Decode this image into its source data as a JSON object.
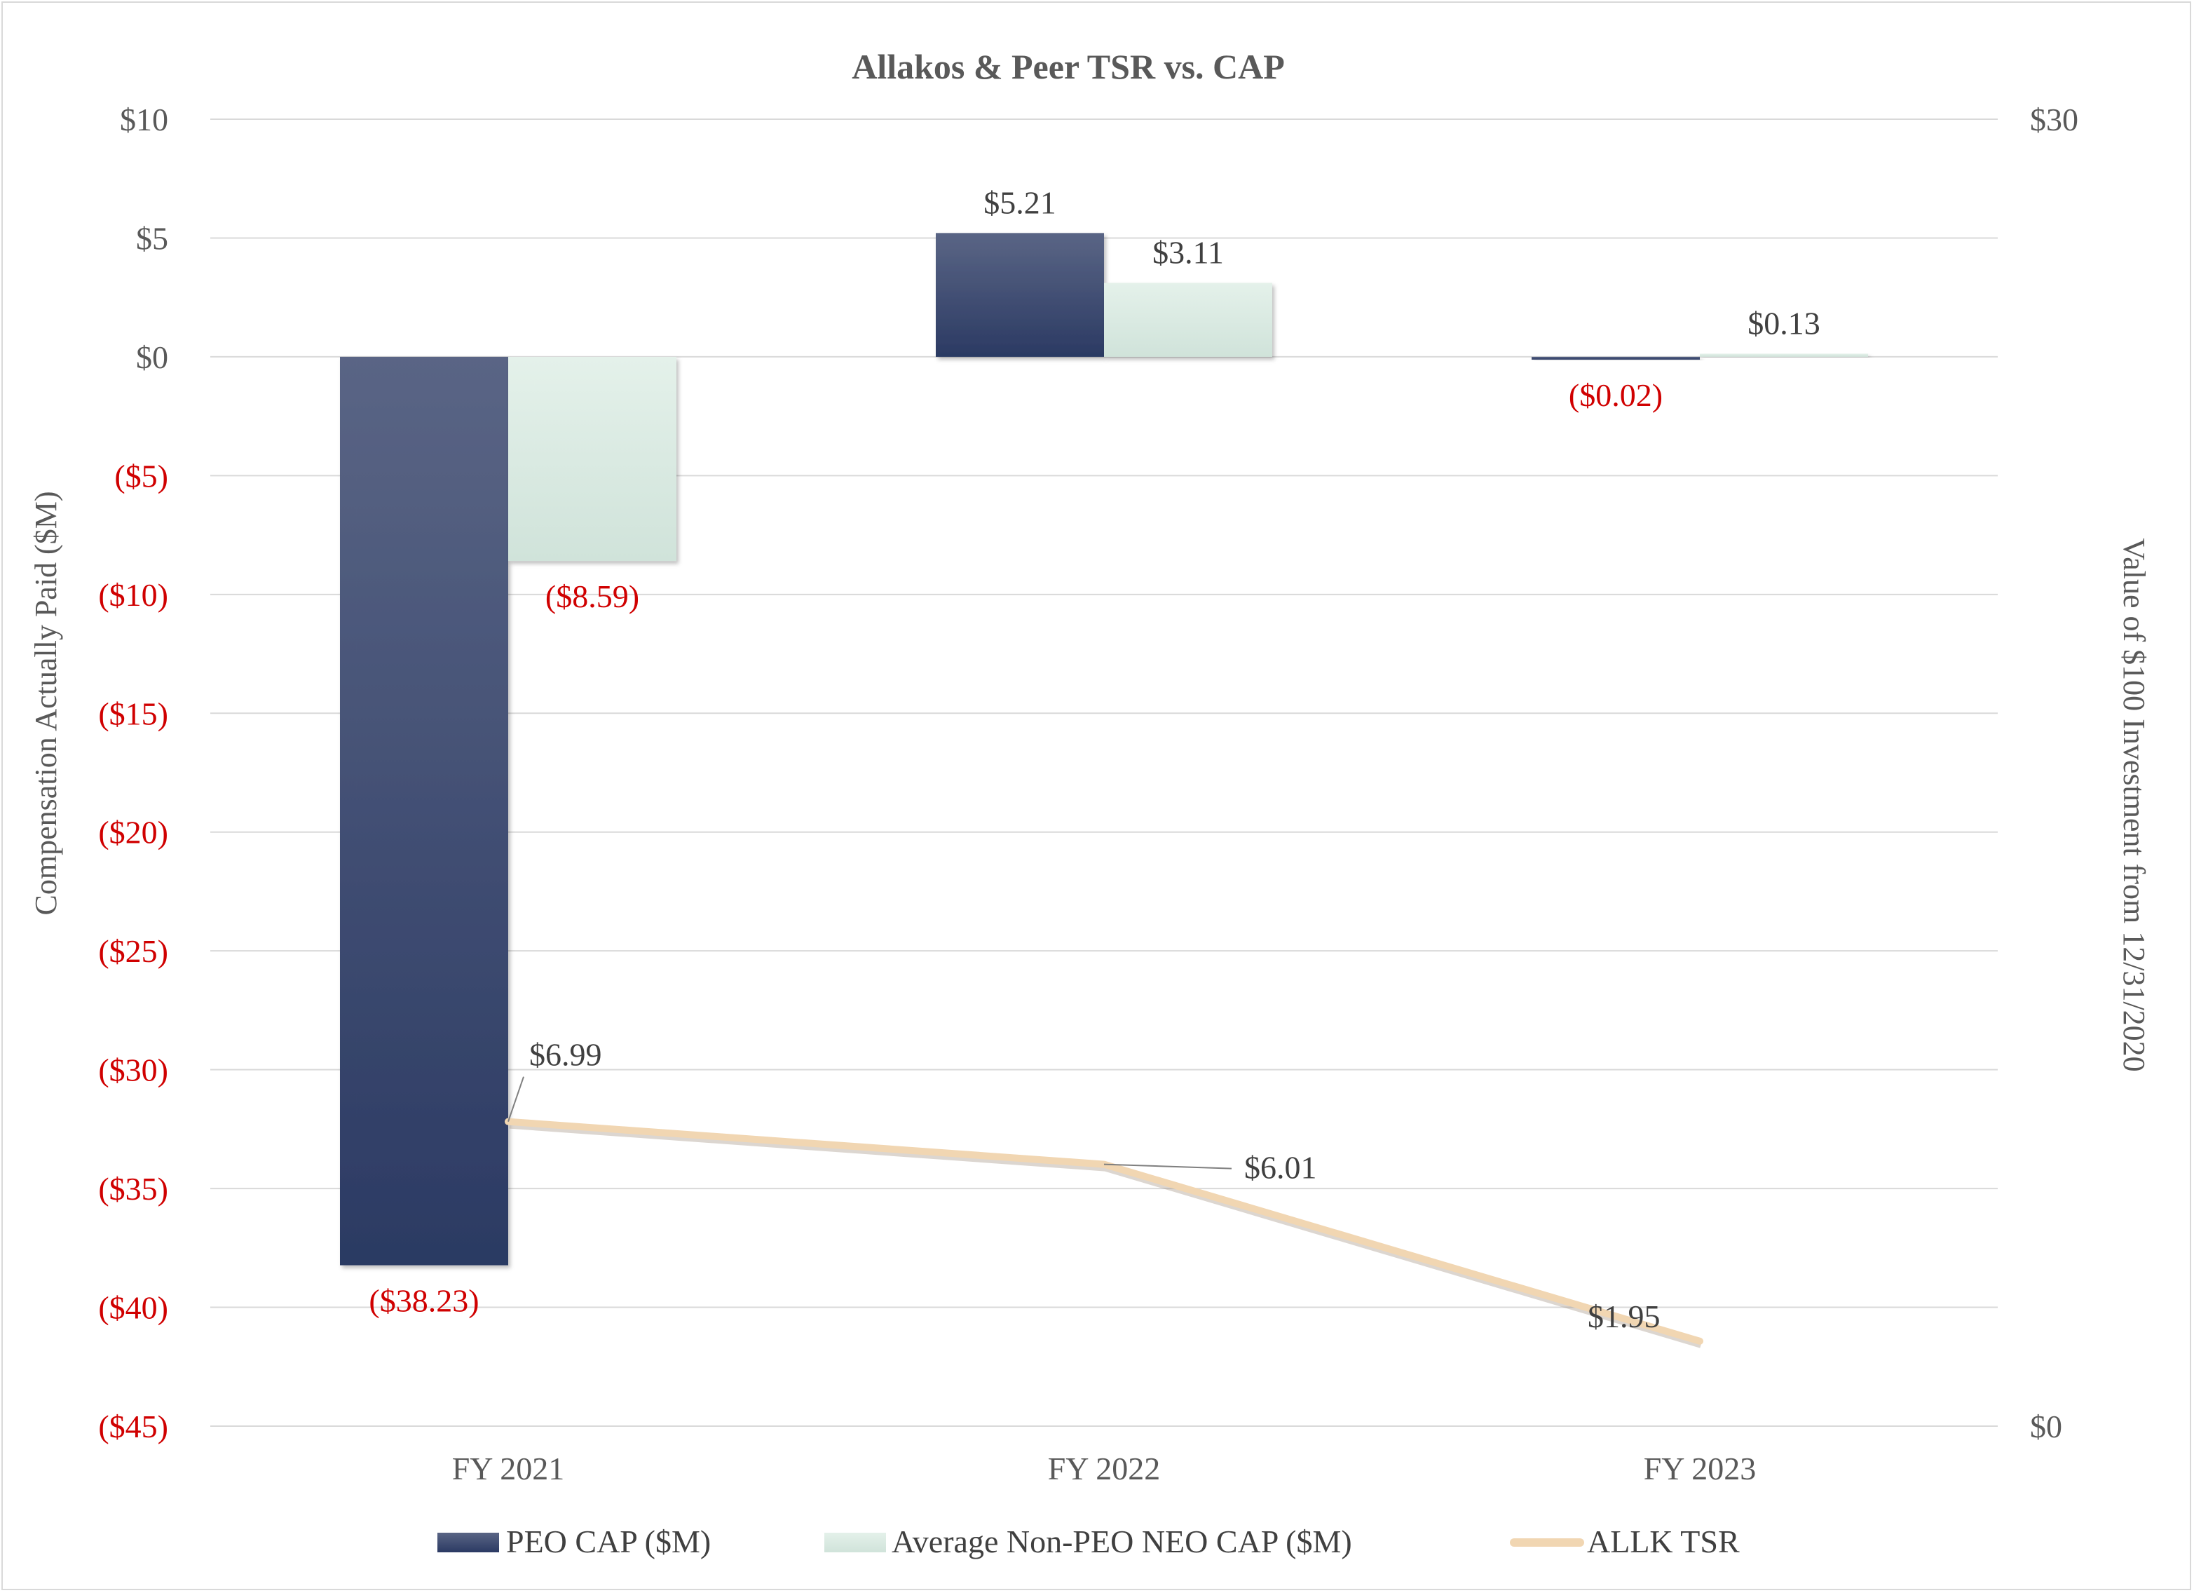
{
  "chart_data": {
    "type": "bar",
    "title": "Allakos & Peer TSR vs. CAP",
    "categories": [
      "FY 2021",
      "FY 2022",
      "FY 2023"
    ],
    "ylabel": "Compensation Actually Paid ($M)",
    "y2label": "Value of $100 Investment from 12/31/2020",
    "ylim": [
      -45,
      10
    ],
    "y2lim": [
      0,
      30
    ],
    "yticks": [
      10,
      5,
      0,
      -5,
      -10,
      -15,
      -20,
      -25,
      -30,
      -35,
      -40,
      -45
    ],
    "ytick_labels": [
      "$10",
      "$5",
      "$0",
      "($5)",
      "($10)",
      "($15)",
      "($20)",
      "($25)",
      "($30)",
      "($35)",
      "($40)",
      "($45)"
    ],
    "y2tick_labels": [
      "$30",
      "$0"
    ],
    "y2ticks": [
      30,
      0
    ],
    "grid": true,
    "legend_position": "bottom",
    "series": [
      {
        "name": "PEO CAP ($M)",
        "type": "bar",
        "axis": "left",
        "values": [
          -38.23,
          5.21,
          -0.02
        ],
        "labels": [
          "($38.23)",
          "$5.21",
          "($0.02)"
        ]
      },
      {
        "name": "Average Non-PEO NEO CAP ($M)",
        "type": "bar",
        "axis": "left",
        "values": [
          -8.59,
          3.11,
          0.13
        ],
        "labels": [
          "($8.59)",
          "$3.11",
          "$0.13"
        ]
      },
      {
        "name": "ALLK TSR",
        "type": "line",
        "axis": "right",
        "values": [
          6.99,
          6.01,
          1.95
        ],
        "labels": [
          "$6.99",
          "$6.01",
          "$1.95"
        ]
      }
    ],
    "colors": {
      "peo_top": "#5a6585",
      "peo_bottom": "#2b3a63",
      "neo_top": "#e4f1ea",
      "neo_bottom": "#d0e3da",
      "tsr_line": "#f1d6b2",
      "negative_label": "#d00000",
      "text": "#404040",
      "grid": "#d9d9d9"
    }
  }
}
